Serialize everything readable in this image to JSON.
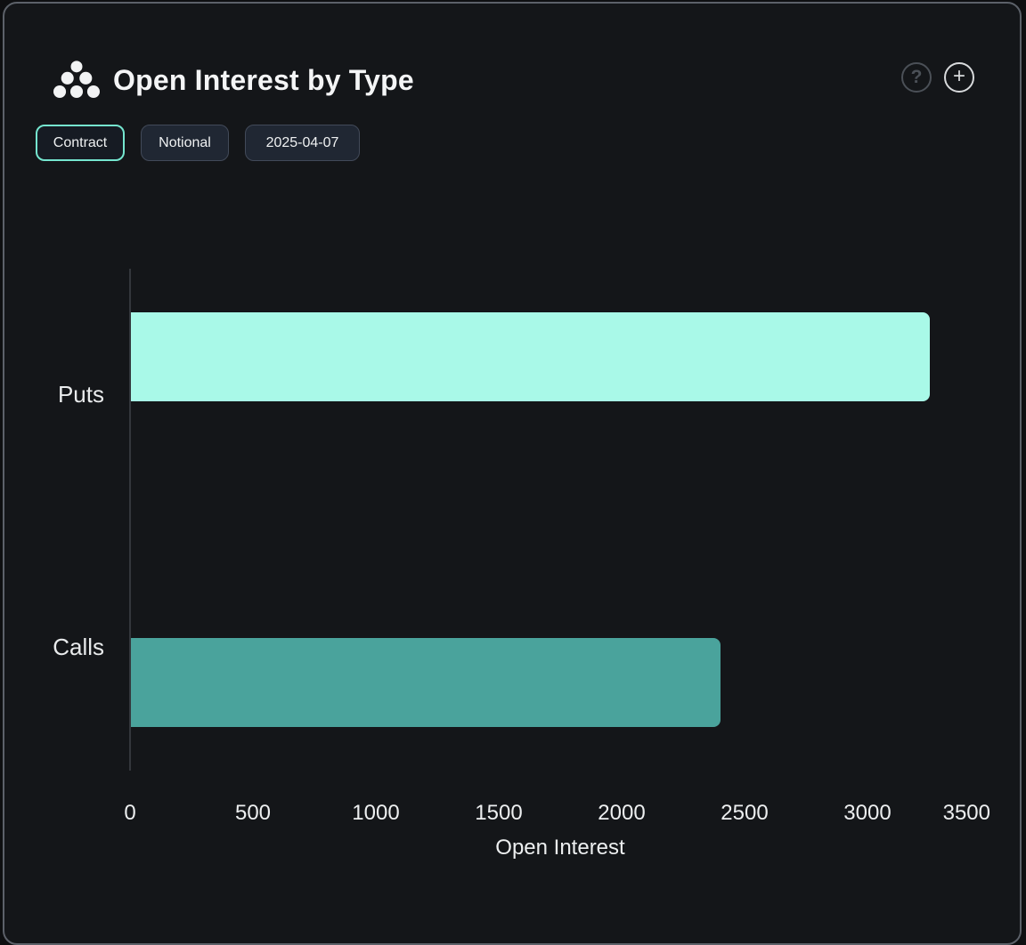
{
  "header": {
    "title": "Open Interest by Type",
    "help_label": "?",
    "add_label": "+"
  },
  "toolbar": {
    "buttons": [
      {
        "label": "Contract",
        "active": true
      },
      {
        "label": "Notional",
        "active": false
      },
      {
        "label": "2025-04-07",
        "active": false
      }
    ]
  },
  "colors": {
    "card_background": "#141619",
    "card_border": "#5c6169",
    "active_button_border": "#75e6cf",
    "puts_bar": "#a9f9e8",
    "calls_bar": "#4aa39c",
    "axis_line": "#34373c",
    "text": "#edeff0"
  },
  "chart_data": {
    "type": "bar",
    "orientation": "horizontal",
    "title": "Open Interest by Type",
    "categories": [
      "Puts",
      "Calls"
    ],
    "values": [
      3250,
      2400
    ],
    "bar_colors": [
      "#a9f9e8",
      "#4aa39c"
    ],
    "xlabel": "Open Interest",
    "ylabel": "",
    "xlim": [
      0,
      3500
    ],
    "xticks": [
      0,
      500,
      1000,
      1500,
      2000,
      2500,
      3000,
      3500
    ],
    "grid": false,
    "legend": false
  }
}
